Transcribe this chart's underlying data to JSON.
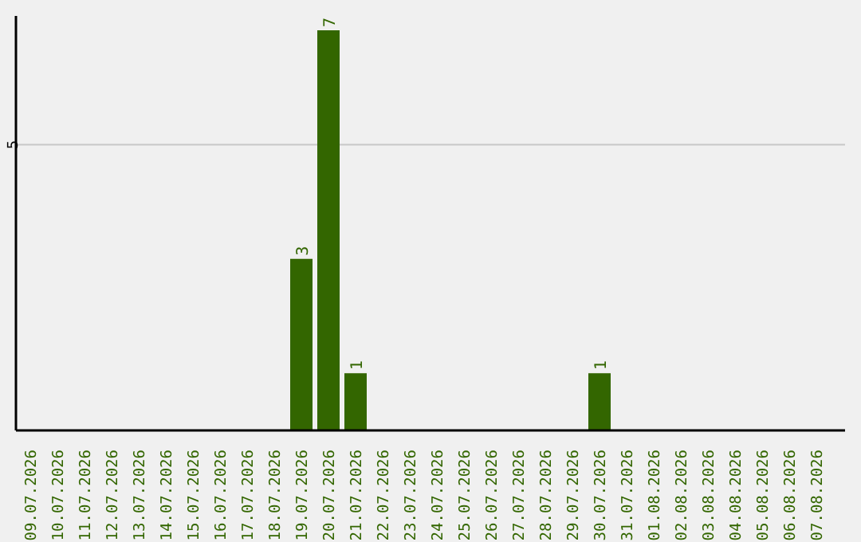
{
  "chart_data": {
    "type": "bar",
    "categories": [
      "09.07.2026",
      "10.07.2026",
      "11.07.2026",
      "12.07.2026",
      "13.07.2026",
      "14.07.2026",
      "15.07.2026",
      "16.07.2026",
      "17.07.2026",
      "18.07.2026",
      "19.07.2026",
      "20.07.2026",
      "21.07.2026",
      "22.07.2026",
      "23.07.2026",
      "24.07.2026",
      "25.07.2026",
      "26.07.2026",
      "27.07.2026",
      "28.07.2026",
      "29.07.2026",
      "30.07.2026",
      "31.07.2026",
      "01.08.2026",
      "02.08.2026",
      "03.08.2026",
      "04.08.2026",
      "05.08.2026",
      "06.08.2026",
      "07.08.2026"
    ],
    "values": [
      0,
      0,
      0,
      0,
      0,
      0,
      0,
      0,
      0,
      0,
      3,
      7,
      1,
      0,
      0,
      0,
      0,
      0,
      0,
      0,
      0,
      1,
      0,
      0,
      0,
      0,
      0,
      0,
      0,
      0
    ],
    "value_labels": [
      null,
      null,
      null,
      null,
      null,
      null,
      null,
      null,
      null,
      null,
      "3",
      "7",
      "1",
      null,
      null,
      null,
      null,
      null,
      null,
      null,
      null,
      "1",
      null,
      null,
      null,
      null,
      null,
      null,
      null,
      null
    ],
    "color": "#336600",
    "ylim": [
      0,
      7.25
    ],
    "yticks": [
      5
    ],
    "grid": "y"
  }
}
